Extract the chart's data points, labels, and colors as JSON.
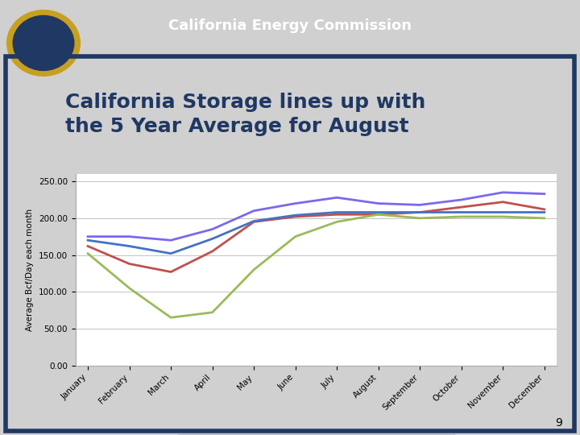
{
  "title": "California Storage lines up with\nthe 5 Year Average for August",
  "header": "California Energy Commission",
  "ylabel": "Average Bcf/Day each month",
  "months": [
    "January",
    "February",
    "March",
    "April",
    "May",
    "June",
    "July",
    "August",
    "September",
    "October",
    "November",
    "December"
  ],
  "series": {
    "5 yr Max": [
      175,
      175,
      170,
      185,
      210,
      220,
      228,
      220,
      218,
      225,
      235,
      233
    ],
    "5 yr Avg": [
      162,
      138,
      127,
      155,
      195,
      202,
      205,
      205,
      208,
      215,
      222,
      212
    ],
    "5 yr Min": [
      152,
      105,
      65,
      72,
      130,
      175,
      195,
      205,
      200,
      202,
      202,
      200
    ],
    "2015": [
      170,
      162,
      152,
      172,
      196,
      204,
      208,
      208,
      208,
      208,
      208,
      208
    ]
  },
  "colors": {
    "5 yr Max": "#7B68EE",
    "5 yr Avg": "#C0504D",
    "5 yr Min": "#9BBB59",
    "2015": "#4472C4"
  },
  "ylim": [
    0,
    260
  ],
  "yticks": [
    0,
    50,
    100,
    150,
    200,
    250
  ],
  "ytick_labels": [
    "0.00",
    "50.00",
    "100.00",
    "150.00",
    "200.00",
    "250.00"
  ],
  "bg_slide": "#FFFFFF",
  "header_bg": "#1F3864",
  "header_text_color": "#FFFFFF",
  "chart_bg": "#FFFFFF",
  "border_color": "#1F3864",
  "title_color": "#1F3864",
  "page_number": "9"
}
